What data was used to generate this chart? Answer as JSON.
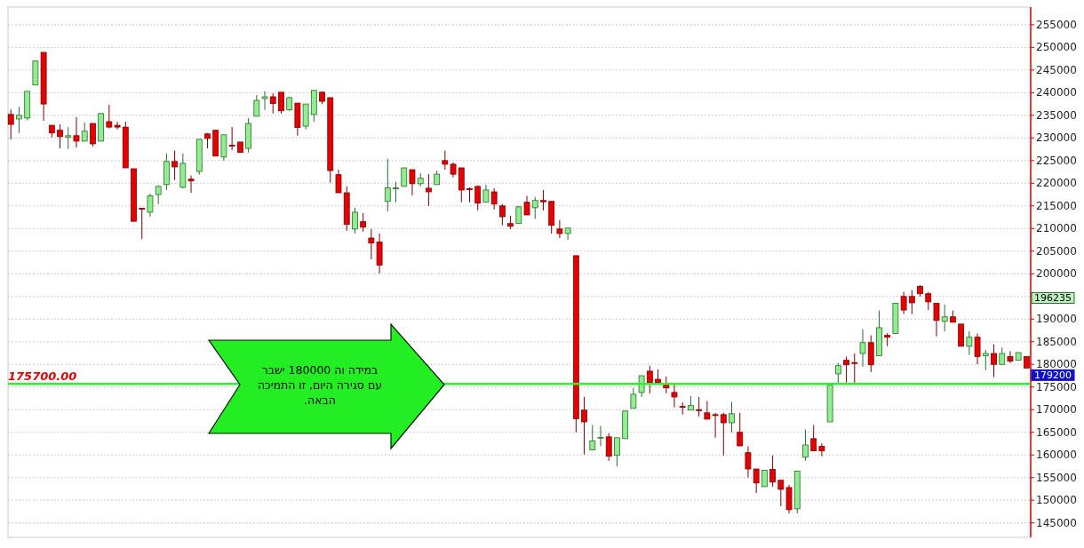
{
  "chart_data": {
    "type": "candlestick",
    "categories": [
      null,
      null,
      null,
      null,
      null,
      null,
      null,
      null,
      null,
      null,
      null,
      null,
      null,
      null,
      null,
      null,
      null,
      null,
      null,
      null,
      null,
      null,
      null,
      null,
      null,
      null,
      null,
      null,
      null,
      null,
      null,
      null,
      null,
      null,
      null,
      null,
      null,
      null,
      null,
      null,
      null,
      null,
      null,
      null,
      null,
      null,
      null,
      null,
      null,
      null,
      null,
      null,
      null,
      null,
      null,
      null,
      null,
      null,
      null,
      null,
      null,
      null,
      null,
      null,
      null,
      null,
      null,
      null,
      null,
      null,
      null,
      null,
      null,
      null,
      null,
      null,
      null,
      null,
      null,
      null,
      null,
      null,
      null,
      null,
      null,
      null,
      null,
      null,
      null,
      null,
      null,
      null,
      null,
      null,
      null,
      null,
      null,
      null,
      null,
      null,
      null,
      null,
      null,
      null,
      null,
      null,
      null,
      null,
      null,
      null,
      null,
      null,
      null,
      null,
      null,
      null,
      null,
      null,
      null,
      null,
      null,
      null,
      null,
      null,
      null
    ],
    "ohlc": [
      [
        235200,
        236300,
        229700,
        233000
      ],
      [
        234200,
        236900,
        231100,
        235000
      ],
      [
        234400,
        240300,
        233900,
        240300
      ],
      [
        241700,
        247000,
        241700,
        247000
      ],
      [
        248900,
        248900,
        233800,
        237500
      ],
      [
        232800,
        232800,
        230100,
        231100
      ],
      [
        231700,
        233000,
        227700,
        230300
      ],
      [
        230200,
        232400,
        227600,
        230500
      ],
      [
        230500,
        234600,
        227900,
        229300
      ],
      [
        229300,
        233400,
        229300,
        231500
      ],
      [
        233200,
        233200,
        228100,
        228700
      ],
      [
        229300,
        235400,
        229300,
        235400
      ],
      [
        233600,
        237300,
        232100,
        232400
      ],
      [
        232800,
        233600,
        231900,
        232400
      ],
      [
        232400,
        233600,
        223400,
        223400
      ],
      [
        223200,
        223200,
        211600,
        211600
      ],
      [
        214500,
        214500,
        207700,
        214300
      ],
      [
        213600,
        217700,
        212600,
        217200
      ],
      [
        217500,
        219500,
        215400,
        219300
      ],
      [
        219700,
        226600,
        218500,
        224800
      ],
      [
        224800,
        227200,
        220700,
        223600
      ],
      [
        219100,
        226600,
        218900,
        224400
      ],
      [
        220900,
        221700,
        217900,
        220500
      ],
      [
        222600,
        229700,
        221900,
        229700
      ],
      [
        230900,
        231100,
        227700,
        229900
      ],
      [
        231700,
        231700,
        226000,
        226000
      ],
      [
        225800,
        230700,
        225000,
        230700
      ],
      [
        228400,
        232400,
        227300,
        228200
      ],
      [
        229100,
        229100,
        226800,
        226800
      ],
      [
        227700,
        234400,
        226800,
        233200
      ],
      [
        234800,
        239500,
        234800,
        238300
      ],
      [
        238700,
        240300,
        236200,
        239100
      ],
      [
        239100,
        239900,
        235400,
        237600
      ],
      [
        240100,
        240100,
        235400,
        236000
      ],
      [
        236200,
        239100,
        236000,
        238900
      ],
      [
        237700,
        237700,
        230500,
        232300
      ],
      [
        232600,
        237500,
        231900,
        237500
      ],
      [
        235200,
        240500,
        233600,
        240500
      ],
      [
        240100,
        240300,
        237500,
        238100
      ],
      [
        238900,
        238900,
        220100,
        222800
      ],
      [
        221900,
        223000,
        217900,
        217900
      ],
      [
        217900,
        219300,
        209500,
        210900
      ],
      [
        209900,
        214600,
        208900,
        213600
      ],
      [
        211500,
        213400,
        209300,
        210300
      ],
      [
        207900,
        209900,
        203200,
        206800
      ],
      [
        207000,
        208900,
        200100,
        201900
      ],
      [
        216000,
        225400,
        213800,
        219000
      ],
      [
        218800,
        220300,
        215800,
        219000
      ],
      [
        219300,
        223400,
        219300,
        223400
      ],
      [
        223000,
        223000,
        217300,
        219900
      ],
      [
        219900,
        222200,
        219300,
        221100
      ],
      [
        218900,
        222000,
        215000,
        218100
      ],
      [
        219700,
        222800,
        219700,
        222000
      ],
      [
        225000,
        227200,
        223000,
        224200
      ],
      [
        224200,
        224600,
        221300,
        222000
      ],
      [
        223400,
        223400,
        215800,
        218500
      ],
      [
        218800,
        219100,
        215800,
        218600
      ],
      [
        219300,
        219500,
        214000,
        215600
      ],
      [
        215800,
        219700,
        215800,
        218500
      ],
      [
        218100,
        218900,
        214200,
        215400
      ],
      [
        215000,
        215400,
        210700,
        212600
      ],
      [
        211100,
        212800,
        209900,
        210500
      ],
      [
        211100,
        215000,
        211100,
        214800
      ],
      [
        215800,
        217200,
        213000,
        213000
      ],
      [
        214600,
        217000,
        212100,
        216200
      ],
      [
        216200,
        218500,
        214000,
        215900
      ],
      [
        216000,
        216000,
        208900,
        210700
      ],
      [
        209900,
        211900,
        207900,
        208900
      ],
      [
        208900,
        210100,
        207500,
        210100
      ],
      [
        204000,
        204000,
        165000,
        168000
      ],
      [
        169900,
        172800,
        160100,
        167300
      ],
      [
        161100,
        166600,
        161100,
        163100
      ],
      [
        163700,
        166400,
        161900,
        163900
      ],
      [
        164000,
        164800,
        158700,
        159700
      ],
      [
        159900,
        163800,
        157500,
        163800
      ],
      [
        163600,
        169700,
        163600,
        169700
      ],
      [
        170300,
        174800,
        170300,
        173400
      ],
      [
        173800,
        177500,
        172800,
        177500
      ],
      [
        178500,
        179700,
        173600,
        176000
      ],
      [
        176700,
        178900,
        176000,
        176000
      ],
      [
        175800,
        177300,
        173600,
        174800
      ],
      [
        173800,
        175800,
        170500,
        172800
      ],
      [
        170700,
        171600,
        168900,
        170500
      ],
      [
        169900,
        173000,
        169900,
        170900
      ],
      [
        170000,
        172800,
        168500,
        169800
      ],
      [
        169300,
        171900,
        167900,
        167900
      ],
      [
        168900,
        169300,
        163800,
        168700
      ],
      [
        168900,
        169300,
        159900,
        167100
      ],
      [
        167100,
        171700,
        165000,
        169100
      ],
      [
        165000,
        169300,
        162000,
        162000
      ],
      [
        160500,
        161900,
        155000,
        156900
      ],
      [
        156900,
        156900,
        151600,
        153800
      ],
      [
        153000,
        156600,
        153000,
        156600
      ],
      [
        156800,
        159900,
        153000,
        154000
      ],
      [
        154400,
        154400,
        148700,
        152400
      ],
      [
        152800,
        153400,
        147100,
        147900
      ],
      [
        148100,
        156400,
        147100,
        156400
      ],
      [
        159500,
        165600,
        158700,
        162200
      ],
      [
        163600,
        166600,
        160900,
        160900
      ],
      [
        161900,
        162600,
        159700,
        160900
      ],
      [
        167300,
        175400,
        167300,
        175400
      ],
      [
        177900,
        180300,
        175600,
        179700
      ],
      [
        180900,
        181700,
        176000,
        179900
      ],
      [
        180400,
        182400,
        175600,
        180200
      ],
      [
        182400,
        187700,
        179500,
        184800
      ],
      [
        184800,
        186400,
        178300,
        179900
      ],
      [
        181900,
        191900,
        181900,
        188100
      ],
      [
        186400,
        186900,
        184000,
        186000
      ],
      [
        186800,
        193500,
        186800,
        193500
      ],
      [
        195000,
        196000,
        191100,
        192000
      ],
      [
        195000,
        196400,
        191100,
        193600
      ],
      [
        197200,
        197500,
        195000,
        195600
      ],
      [
        195600,
        196000,
        192000,
        193800
      ],
      [
        193500,
        193500,
        186200,
        189700
      ],
      [
        189500,
        193200,
        187300,
        190500
      ],
      [
        190500,
        191900,
        189300,
        189300
      ],
      [
        188900,
        188900,
        184000,
        184000
      ],
      [
        184000,
        187300,
        182100,
        186000
      ],
      [
        186000,
        186800,
        180000,
        181700
      ],
      [
        181900,
        183200,
        178700,
        182400
      ],
      [
        182400,
        184400,
        177200,
        180000
      ],
      [
        180000,
        183700,
        180000,
        182400
      ],
      [
        181700,
        182900,
        180300,
        180700
      ],
      [
        180900,
        182600,
        180900,
        182600
      ],
      [
        181700,
        181700,
        179200,
        179200
      ]
    ],
    "colors": [
      "#e60000",
      "#90ee90",
      "#90ee90",
      "#90ee90",
      "#e60000",
      "#e60000",
      "#e60000",
      "#90ee90",
      "#e60000",
      "#90ee90",
      "#e60000",
      "#90ee90",
      "#e60000",
      "#e60000",
      "#e60000",
      "#e60000",
      "#e60000",
      "#90ee90",
      "#90ee90",
      "#90ee90",
      "#e60000",
      "#90ee90",
      "#e60000",
      "#90ee90",
      "#e60000",
      "#e60000",
      "#90ee90",
      "#e60000",
      "#e60000",
      "#90ee90",
      "#90ee90",
      "#90ee90",
      "#e60000",
      "#e60000",
      "#90ee90",
      "#e60000",
      "#90ee90",
      "#90ee90",
      "#e60000",
      "#e60000",
      "#e60000",
      "#e60000",
      "#90ee90",
      "#e60000",
      "#e60000",
      "#e60000",
      "#90ee90",
      "#90ee90",
      "#90ee90",
      "#e60000",
      "#90ee90",
      "#e60000",
      "#90ee90",
      "#e60000",
      "#e60000",
      "#e60000",
      "#e60000",
      "#e60000",
      "#90ee90",
      "#e60000",
      "#e60000",
      "#e60000",
      "#90ee90",
      "#e60000",
      "#90ee90",
      "#e60000",
      "#e60000",
      "#e60000",
      "#90ee90",
      "#e60000",
      "#e60000",
      "#90ee90",
      "#90ee90",
      "#e60000",
      "#90ee90",
      "#90ee90",
      "#90ee90",
      "#90ee90",
      "#e60000",
      "#e60000",
      "#e60000",
      "#e60000",
      "#e60000",
      "#90ee90",
      "#e60000",
      "#e60000",
      "#e60000",
      "#e60000",
      "#90ee90",
      "#e60000",
      "#e60000",
      "#e60000",
      "#90ee90",
      "#e60000",
      "#e60000",
      "#e60000",
      "#90ee90",
      "#90ee90",
      "#e60000",
      "#e60000",
      "#90ee90",
      "#90ee90",
      "#e60000",
      "#e60000",
      "#90ee90",
      "#e60000",
      "#90ee90",
      "#e60000",
      "#90ee90",
      "#e60000",
      "#e60000",
      "#e60000",
      "#e60000",
      "#e60000",
      "#90ee90",
      "#e60000",
      "#e60000",
      "#90ee90",
      "#e60000",
      "#90ee90",
      "#e60000",
      "#90ee90",
      "#e60000",
      "#90ee90",
      "#e60000"
    ],
    "ylim": [
      141800,
      258900
    ],
    "yticks": [
      145000,
      150000,
      155000,
      160000,
      165000,
      170000,
      175000,
      180000,
      185000,
      190000,
      {
        "value": 195000,
        "label": null
      },
      200000,
      205000,
      210000,
      215000,
      220000,
      225000,
      230000,
      235000,
      240000,
      245000,
      250000,
      255000
    ],
    "grid": "y",
    "ref_lines": [
      {
        "axis": "y",
        "value": 175700,
        "label": "175700.00",
        "color": "#33ee33"
      }
    ],
    "annotations": [
      "במידה  וה 180000 ישבר\nעם סגירה היום,  זו התמיכה\nהבאה.",
      "196235",
      "179200"
    ]
  }
}
